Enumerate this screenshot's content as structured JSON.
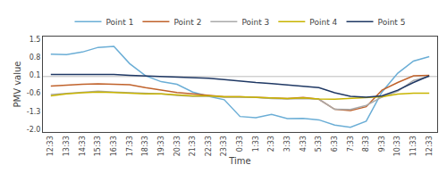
{
  "chart_data": {
    "type": "line",
    "xlabel": "Time",
    "ylabel": "PMV value",
    "categories": [
      "12:33",
      "13:33",
      "14:33",
      "15:33",
      "16:33",
      "17:33",
      "18:33",
      "19:33",
      "20:33",
      "21:33",
      "22:33",
      "23:33",
      "0:33",
      "1:33",
      "2:33",
      "3:33",
      "4:33",
      "5:33",
      "6:33",
      "7:33",
      "8:33",
      "9:33",
      "10:33",
      "11:33",
      "12:33"
    ],
    "series": [
      {
        "name": "Point 1",
        "color": "#6BAED6",
        "values": [
          0.92,
          0.9,
          1.0,
          1.18,
          1.22,
          0.55,
          0.08,
          -0.15,
          -0.25,
          -0.55,
          -0.72,
          -0.85,
          -1.5,
          -1.55,
          -1.42,
          -1.58,
          -1.57,
          -1.63,
          -1.83,
          -1.92,
          -1.68,
          -0.55,
          0.18,
          0.65,
          0.82
        ]
      },
      {
        "name": "Point 2",
        "color": "#C0622B",
        "values": [
          -0.32,
          -0.28,
          -0.25,
          -0.23,
          -0.24,
          -0.27,
          -0.38,
          -0.47,
          -0.57,
          -0.62,
          -0.68,
          -0.73,
          -0.73,
          -0.75,
          -0.78,
          -0.8,
          -0.76,
          -0.83,
          -1.22,
          -1.27,
          -1.12,
          -0.48,
          -0.18,
          0.08,
          0.1
        ]
      },
      {
        "name": "Point 3",
        "color": "#AAAAAA",
        "values": [
          -0.65,
          -0.6,
          -0.55,
          -0.52,
          -0.55,
          -0.58,
          -0.6,
          -0.62,
          -0.68,
          -0.72,
          -0.72,
          -0.75,
          -0.75,
          -0.76,
          -0.8,
          -0.82,
          -0.8,
          -0.83,
          -1.22,
          -1.23,
          -1.07,
          -0.75,
          -0.52,
          -0.1,
          0.05
        ]
      },
      {
        "name": "Point 4",
        "color": "#C8B400",
        "values": [
          -0.7,
          -0.62,
          -0.58,
          -0.55,
          -0.57,
          -0.6,
          -0.62,
          -0.62,
          -0.67,
          -0.7,
          -0.7,
          -0.73,
          -0.73,
          -0.75,
          -0.77,
          -0.8,
          -0.78,
          -0.82,
          -0.83,
          -0.8,
          -0.78,
          -0.73,
          -0.63,
          -0.6,
          -0.6
        ]
      },
      {
        "name": "Point 5",
        "color": "#1F3864",
        "values": [
          0.13,
          0.13,
          0.14,
          0.14,
          0.13,
          0.1,
          0.08,
          0.06,
          0.04,
          0.01,
          -0.02,
          -0.07,
          -0.13,
          -0.18,
          -0.22,
          -0.28,
          -0.33,
          -0.38,
          -0.58,
          -0.72,
          -0.75,
          -0.7,
          -0.48,
          -0.18,
          0.08
        ]
      }
    ],
    "hline_y": 0.05,
    "ylim": [
      -2.1,
      1.6
    ],
    "yticks": [
      {
        "value": -2,
        "label": "-2.0"
      },
      -1.3,
      -0.6,
      0.1,
      0.8,
      1.5
    ],
    "grid": false,
    "legend": "top"
  }
}
